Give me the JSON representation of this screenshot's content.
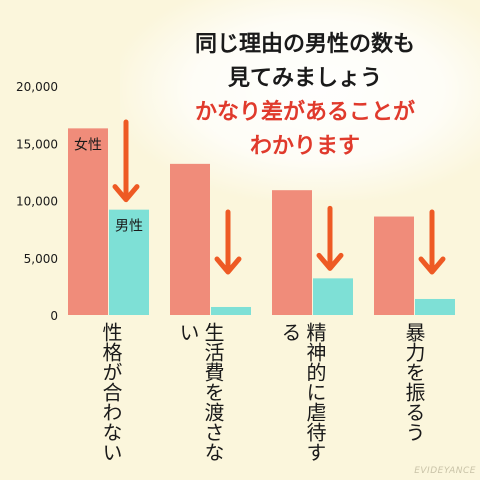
{
  "headline": {
    "line1": "同じ理由の男性の数も",
    "line2": "見てみましょう",
    "line3": "かなり差があることが",
    "line4": "わかります"
  },
  "watermark": "EVIDEYANCE",
  "colors": {
    "female": "#f08c7a",
    "male": "#7ee0d6",
    "arrow": "#ee5a24",
    "text_red": "#e03a2c",
    "background": "#fbf6dc"
  },
  "chart_data": {
    "type": "bar",
    "categories": [
      "性格が合わない",
      "生活費を渡さない",
      "精神的に虐待する",
      "暴力を振るう"
    ],
    "series": [
      {
        "name": "女性",
        "values": [
          16300,
          13200,
          10900,
          8600
        ]
      },
      {
        "name": "男性",
        "values": [
          9200,
          700,
          3200,
          1400
        ]
      }
    ],
    "ylim": [
      0,
      20000
    ],
    "yticks": [
      "0",
      "5,000",
      "10,000",
      "15,000",
      "20,000"
    ],
    "grid": false,
    "legend": "inline labels on first category bars",
    "arrows": "downward arrow over each 男性 bar"
  }
}
